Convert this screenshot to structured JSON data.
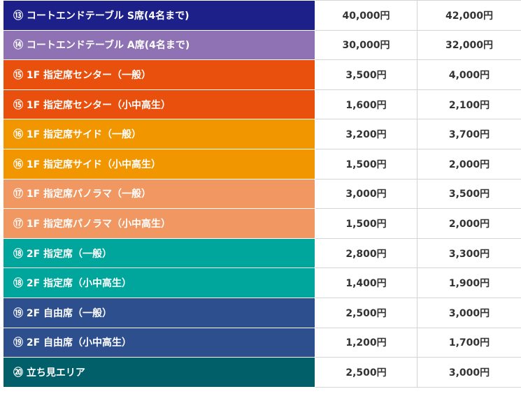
{
  "rows": [
    {
      "seat": "⑬ コートエンドテーブル S席(4名まで)",
      "price_1": "40,000円",
      "price_2": "42,000円",
      "color": "#1d2088"
    },
    {
      "seat": "⑭ コートエンドテーブル A席(4名まで)",
      "price_1": "30,000円",
      "price_2": "32,000円",
      "color": "#8e72b3"
    },
    {
      "seat": "⑮ 1F 指定席センター（一般）",
      "price_1": "3,500円",
      "price_2": "4,000円",
      "color": "#e9500d"
    },
    {
      "seat": "⑮ 1F 指定席センター（小中高生）",
      "price_1": "1,600円",
      "price_2": "2,100円",
      "color": "#e9500d"
    },
    {
      "seat": "⑯ 1F 指定席サイド（一般）",
      "price_1": "3,200円",
      "price_2": "3,700円",
      "color": "#f29600"
    },
    {
      "seat": "⑯ 1F 指定席サイド（小中高生）",
      "price_1": "1,500円",
      "price_2": "2,000円",
      "color": "#f29600"
    },
    {
      "seat": "⑰ 1F 指定席パノラマ（一般）",
      "price_1": "3,000円",
      "price_2": "3,500円",
      "color": "#f19761"
    },
    {
      "seat": "⑰ 1F 指定席パノラマ（小中高生）",
      "price_1": "1,500円",
      "price_2": "2,000円",
      "color": "#f19761"
    },
    {
      "seat": "⑱ 2F 指定席（一般）",
      "price_1": "2,800円",
      "price_2": "3,300円",
      "color": "#00a59c"
    },
    {
      "seat": "⑱ 2F 指定席（小中高生）",
      "price_1": "1,400円",
      "price_2": "1,900円",
      "color": "#00a59c"
    },
    {
      "seat": "⑲ 2F 自由席（一般）",
      "price_1": "2,500円",
      "price_2": "3,000円",
      "color": "#2d4f8e"
    },
    {
      "seat": "⑲ 2F 自由席（小中高生）",
      "price_1": "1,200円",
      "price_2": "1,700円",
      "color": "#2d4f8e"
    },
    {
      "seat": "⑳ 立ち見エリア",
      "price_1": "2,500円",
      "price_2": "3,000円",
      "color": "#005f69"
    }
  ]
}
